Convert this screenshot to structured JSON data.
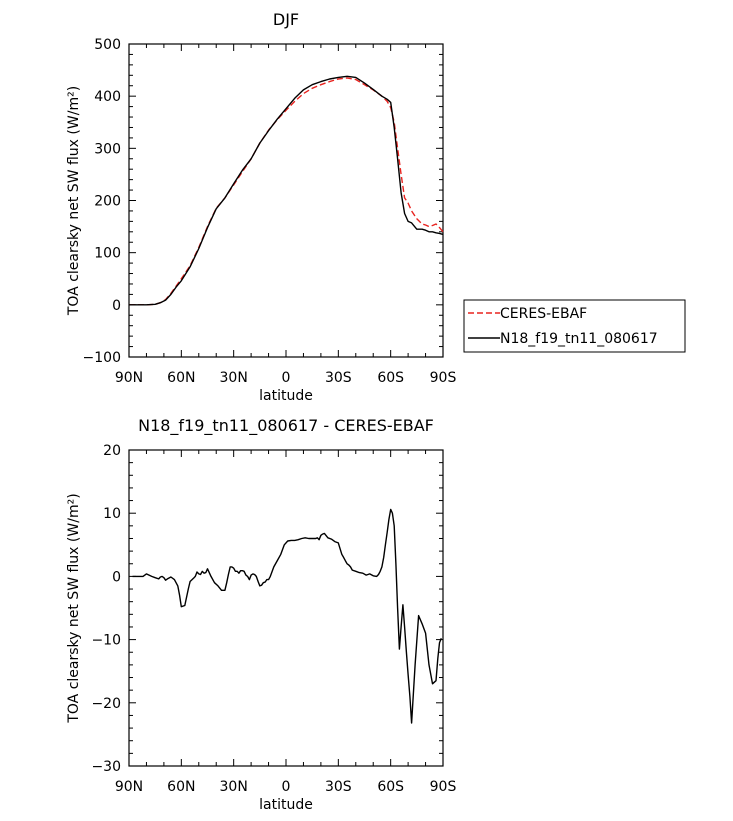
{
  "chart_data": [
    {
      "type": "line",
      "title": "DJF",
      "xlabel": "latitude",
      "ylabel": "TOA clearsky net SW flux (W/m²)",
      "xlim": [
        -90,
        90
      ],
      "ylim": [
        -100,
        500
      ],
      "xticks": [
        {
          "value": -90,
          "label": "90N"
        },
        {
          "value": -60,
          "label": "60N"
        },
        {
          "value": -30,
          "label": "30N"
        },
        {
          "value": 0,
          "label": "0"
        },
        {
          "value": 30,
          "label": "30S"
        },
        {
          "value": 60,
          "label": "60S"
        },
        {
          "value": 90,
          "label": "90S"
        }
      ],
      "yticks": [
        -100,
        0,
        100,
        200,
        300,
        400,
        500
      ],
      "legend": {
        "position": "right"
      },
      "series": [
        {
          "name": "CERES-EBAF",
          "color": "#e8231f",
          "dash": "dashed",
          "x": [
            -90,
            -85,
            -80,
            -75,
            -72,
            -69,
            -66,
            -63,
            -60,
            -55,
            -50,
            -45,
            -40,
            -35,
            -30,
            -25,
            -20,
            -15,
            -10,
            -5,
            0,
            5,
            10,
            15,
            20,
            25,
            30,
            35,
            40,
            45,
            50,
            55,
            58,
            60,
            62,
            64,
            66,
            68,
            70,
            72,
            75,
            78,
            80,
            82,
            84,
            86,
            88,
            90
          ],
          "y": [
            0,
            0,
            0,
            1,
            4,
            10,
            22,
            36,
            50,
            75,
            110,
            150,
            185,
            205,
            230,
            255,
            280,
            310,
            335,
            355,
            373,
            390,
            405,
            415,
            422,
            428,
            433,
            435,
            432,
            422,
            412,
            400,
            390,
            378,
            350,
            300,
            250,
            205,
            195,
            180,
            165,
            155,
            153,
            150,
            152,
            155,
            148,
            140
          ]
        },
        {
          "name": "N18_f19_tn11_080617",
          "color": "#000000",
          "dash": "solid",
          "x": [
            -90,
            -85,
            -80,
            -75,
            -72,
            -69,
            -66,
            -63,
            -60,
            -55,
            -50,
            -45,
            -40,
            -35,
            -30,
            -25,
            -20,
            -15,
            -10,
            -5,
            0,
            5,
            10,
            15,
            20,
            25,
            30,
            35,
            40,
            45,
            50,
            55,
            58,
            60,
            62,
            64,
            66,
            68,
            70,
            72,
            75,
            78,
            80,
            82,
            84,
            86,
            88,
            90
          ],
          "y": [
            0,
            0,
            0,
            1,
            4,
            9,
            20,
            34,
            46,
            73,
            108,
            148,
            184,
            205,
            232,
            258,
            280,
            310,
            334,
            356,
            376,
            396,
            412,
            422,
            428,
            433,
            436,
            438,
            436,
            425,
            413,
            400,
            394,
            388,
            340,
            280,
            215,
            175,
            160,
            157,
            145,
            145,
            143,
            140,
            140,
            138,
            137,
            135
          ]
        }
      ]
    },
    {
      "type": "line",
      "title": "N18_f19_tn11_080617 - CERES-EBAF",
      "xlabel": "latitude",
      "ylabel": "TOA clearsky net SW flux (W/m²)",
      "xlim": [
        -90,
        90
      ],
      "ylim": [
        -30,
        20
      ],
      "xticks": [
        {
          "value": -90,
          "label": "90N"
        },
        {
          "value": -60,
          "label": "60N"
        },
        {
          "value": -30,
          "label": "30N"
        },
        {
          "value": 0,
          "label": "0"
        },
        {
          "value": 30,
          "label": "30S"
        },
        {
          "value": 60,
          "label": "60S"
        },
        {
          "value": 90,
          "label": "90S"
        }
      ],
      "yticks": [
        -30,
        -20,
        -10,
        0,
        10,
        20
      ],
      "series": [
        {
          "color": "#000000",
          "dash": "solid",
          "x": [
            -88,
            -85,
            -82,
            -80,
            -77,
            -75,
            -73,
            -72,
            -71,
            -70,
            -69,
            -68,
            -66,
            -64,
            -62,
            -61,
            -60,
            -58,
            -56,
            -55,
            -53,
            -52,
            -51,
            -50,
            -49,
            -48,
            -47,
            -46,
            -45,
            -43,
            -41,
            -39,
            -37,
            -35,
            -34,
            -33,
            -32,
            -31,
            -30,
            -29,
            -28,
            -27,
            -26,
            -25,
            -24,
            -23,
            -22,
            -21,
            -20,
            -19,
            -18,
            -17,
            -16,
            -15,
            -14,
            -13,
            -12,
            -11,
            -10,
            -9,
            -7,
            -5,
            -3,
            -1,
            1,
            3,
            5,
            7,
            9,
            11,
            13,
            15,
            17,
            18,
            19,
            20,
            21,
            22,
            24,
            26,
            28,
            30,
            32,
            33,
            34,
            35,
            36,
            37,
            38,
            40,
            42,
            44,
            46,
            48,
            50,
            52,
            53,
            54,
            55,
            56,
            57,
            58,
            59,
            60,
            61,
            62,
            63,
            64,
            65,
            66,
            67,
            68,
            69,
            70,
            71,
            72,
            74,
            76,
            78,
            80,
            82,
            84,
            86,
            87,
            88,
            89
          ],
          "y": [
            0,
            0,
            0,
            0.4,
            0,
            -0.2,
            -0.4,
            -0.1,
            0,
            -0.2,
            -0.6,
            -0.4,
            -0.1,
            -0.5,
            -1.5,
            -3,
            -4.8,
            -4.6,
            -2,
            -0.8,
            -0.3,
            0,
            0.7,
            0.4,
            0.3,
            0.8,
            0.5,
            0.6,
            1.2,
            0,
            -1,
            -1.5,
            -2.2,
            -2.2,
            -1,
            0.3,
            1.5,
            1.5,
            1.3,
            0.8,
            0.8,
            0.5,
            0.9,
            0.9,
            0.8,
            0.2,
            0,
            -0.5,
            0.2,
            0.4,
            0.3,
            0,
            -0.8,
            -1.5,
            -1.4,
            -1,
            -0.9,
            -0.5,
            -0.5,
            0,
            1.5,
            2.5,
            3.5,
            5,
            5.6,
            5.7,
            5.7,
            5.8,
            6,
            6.1,
            6,
            6,
            6,
            6.1,
            5.8,
            6.5,
            6.7,
            6.8,
            6.1,
            5.9,
            5.5,
            5.3,
            3.5,
            3,
            2.5,
            2,
            1.8,
            1.5,
            1,
            0.8,
            0.6,
            0.5,
            0.2,
            0.4,
            0.1,
            0,
            0.3,
            0.8,
            1.5,
            3,
            5,
            7,
            9,
            10.6,
            10,
            8,
            2,
            -5,
            -11.5,
            -8,
            -4.5,
            -8,
            -12,
            -15.5,
            -19,
            -23.2,
            -14,
            -6.2,
            -7.5,
            -9,
            -14,
            -17,
            -16.5,
            -13,
            -10.5,
            -9.8
          ]
        }
      ]
    }
  ]
}
